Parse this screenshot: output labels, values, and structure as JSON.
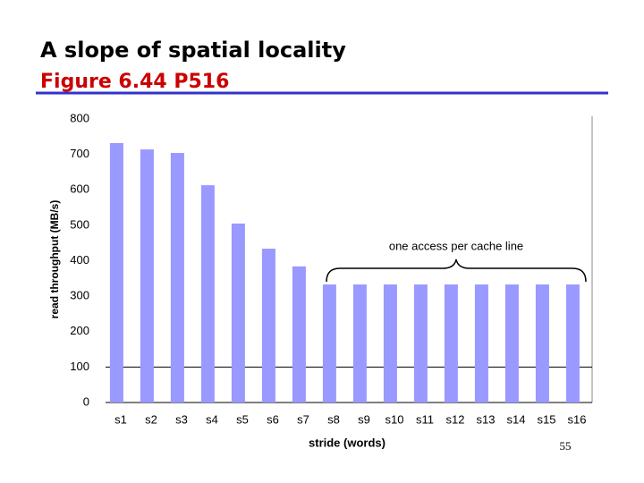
{
  "page_number": "55",
  "chart_data": {
    "type": "bar",
    "title": "A slope of spatial locality",
    "subtitle": "Figure 6.44 P516",
    "x_label": "stride (words)",
    "y_label": "read throughput (MB/s)",
    "annotation": "one access per cache line",
    "categories": [
      "s1",
      "s2",
      "s3",
      "s4",
      "s5",
      "s6",
      "s7",
      "s8",
      "s9",
      "s10",
      "s11",
      "s12",
      "s13",
      "s14",
      "s15",
      "s16"
    ],
    "values": [
      732,
      714,
      704,
      613,
      505,
      434,
      384,
      333,
      333,
      333,
      333,
      333,
      333,
      333,
      333,
      333
    ],
    "color": "#9999ff",
    "ylim": [
      0,
      800
    ],
    "yticks": [
      0,
      100,
      200,
      300,
      400,
      500,
      600,
      700,
      800
    ],
    "reference_line": 100
  }
}
